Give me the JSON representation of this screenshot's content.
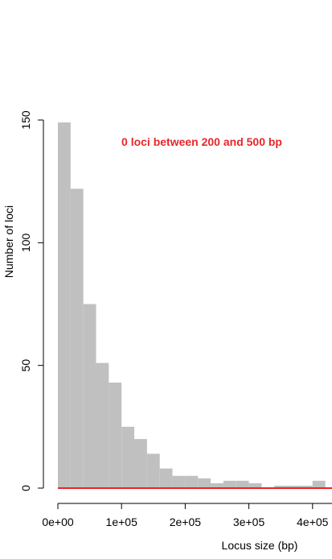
{
  "chart_data": {
    "type": "bar",
    "xlabel": "Locus size (bp)",
    "ylabel": "Number of loci",
    "annotation": "0 loci between 200 and 500 bp",
    "bin_width": 20000,
    "bins_start": 0,
    "values": [
      149,
      122,
      75,
      51,
      43,
      25,
      20,
      14,
      8,
      5,
      5,
      4,
      2,
      3,
      3,
      2,
      0,
      1,
      1,
      1,
      3
    ],
    "xlim": [
      0,
      420000
    ],
    "ylim": [
      0,
      150
    ],
    "x_ticks": [
      0,
      100000,
      200000,
      300000,
      400000
    ],
    "x_tick_labels": [
      "0e+00",
      "1e+05",
      "2e+05",
      "3e+05",
      "4e+05"
    ],
    "y_ticks": [
      0,
      50,
      100,
      150
    ],
    "y_tick_labels": [
      "0",
      "50",
      "100",
      "150"
    ],
    "colors": {
      "bars": "#c0c0c0",
      "baseline": "#ee2222",
      "annotation": "#e8262b",
      "axis": "#000000"
    }
  }
}
